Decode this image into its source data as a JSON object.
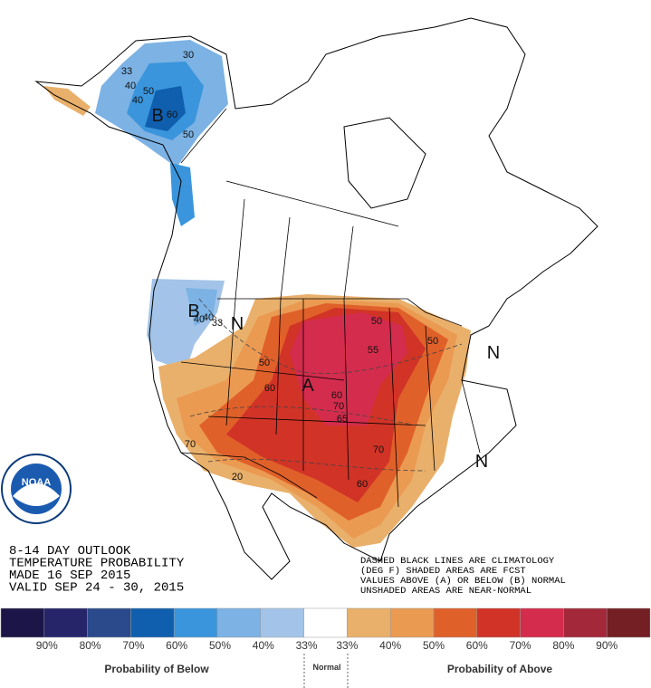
{
  "map": {
    "labels": [
      "30",
      "40",
      "50",
      "40",
      "60",
      "50",
      "33",
      "40",
      "33",
      "40",
      "50",
      "50",
      "55",
      "50",
      "60",
      "70",
      "65",
      "70",
      "60",
      "20",
      "70",
      "60",
      "B",
      "B",
      "N",
      "A",
      "N",
      "N"
    ]
  },
  "logo": {
    "name": "NOAA"
  },
  "outlook": {
    "lines": [
      "8-14 DAY OUTLOOK",
      "TEMPERATURE PROBABILITY",
      "MADE  16 SEP 2015",
      "VALID  SEP 24 - 30, 2015"
    ]
  },
  "notes": {
    "lines": [
      "DASHED BLACK LINES ARE CLIMATOLOGY",
      "(DEG F) SHADED AREAS ARE FCST",
      "VALUES ABOVE (A) OR BELOW (B) NORMAL",
      "UNSHADED AREAS ARE NEAR-NORMAL"
    ]
  },
  "legend": {
    "colors": [
      "#1b1647",
      "#26256a",
      "#2a4a8c",
      "#0f5fae",
      "#3a95dc",
      "#7cb2e4",
      "#a3c4e8",
      "#ffffff",
      "#e9b06b",
      "#eb9a52",
      "#e0602a",
      "#d13327",
      "#d42c4d",
      "#a3283a",
      "#731f24"
    ],
    "labels": [
      "90%",
      "80%",
      "70%",
      "60%",
      "50%",
      "40%",
      "33%",
      "33%",
      "40%",
      "50%",
      "60%",
      "70%",
      "80%",
      "90%"
    ],
    "below_title": "Probability of Below",
    "normal_title": "Normal",
    "above_title": "Probability of Above"
  }
}
